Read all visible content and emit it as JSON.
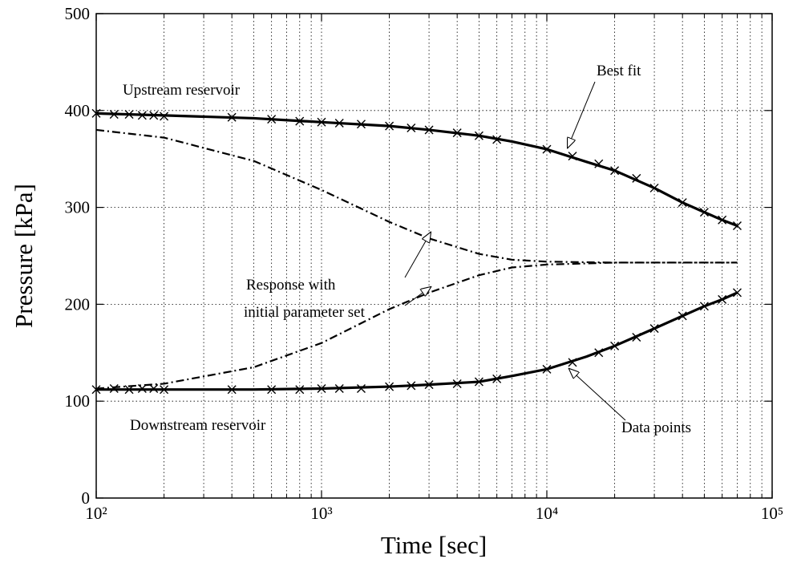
{
  "chart_data": {
    "type": "line",
    "x_label": "Time [sec]",
    "y_label": "Pressure [kPa]",
    "xlim": [
      100,
      100000
    ],
    "xlog": true,
    "xticks": [
      {
        "value": 100,
        "label": "10²"
      },
      {
        "value": 1000,
        "label": "10³"
      },
      {
        "value": 10000,
        "label": "10⁴"
      },
      {
        "value": 100000,
        "label": "10⁵"
      }
    ],
    "ylim": [
      0,
      500
    ],
    "yticks": [
      0,
      100,
      200,
      300,
      400,
      500
    ],
    "grid": true,
    "minor_grid": true,
    "annotations": [
      "Upstream reservoir",
      "Best fit",
      "Response with",
      "initial parameter set",
      "Downstream reservoir",
      "Data points"
    ],
    "series": [
      {
        "style": "solid",
        "color": "#000000",
        "x": [
          100,
          200,
          500,
          1000,
          2000,
          3000,
          5000,
          7000,
          10000,
          15000,
          20000,
          30000,
          40000,
          50000,
          60000,
          70000
        ],
        "values": [
          397,
          395,
          392,
          388,
          384,
          380,
          374,
          368,
          360,
          347,
          338,
          320,
          305,
          295,
          287,
          281
        ]
      },
      {
        "style": "solid",
        "color": "#000000",
        "x": [
          100,
          200,
          500,
          1000,
          2000,
          3000,
          5000,
          7000,
          10000,
          15000,
          20000,
          30000,
          40000,
          50000,
          60000,
          70000
        ],
        "values": [
          112,
          112,
          112,
          113,
          115,
          117,
          120,
          126,
          133,
          146,
          157,
          175,
          188,
          198,
          205,
          212
        ]
      },
      {
        "style": "markers",
        "color": "#000000",
        "x": [
          100,
          120,
          140,
          160,
          180,
          200,
          400,
          600,
          800,
          1000,
          1200,
          1500,
          2000,
          2500,
          3000,
          4000,
          5000,
          6000,
          10000,
          13000,
          17000,
          20000,
          25000,
          30000,
          40000,
          50000,
          60000,
          70000
        ],
        "values": [
          397,
          396,
          396,
          395,
          395,
          394,
          393,
          391,
          389,
          388,
          387,
          386,
          384,
          382,
          380,
          377,
          374,
          370,
          360,
          353,
          345,
          338,
          330,
          320,
          305,
          295,
          287,
          281
        ]
      },
      {
        "style": "markers",
        "color": "#000000",
        "x": [
          100,
          120,
          140,
          160,
          180,
          200,
          400,
          600,
          800,
          1000,
          1200,
          1500,
          2000,
          2500,
          3000,
          4000,
          5000,
          6000,
          10000,
          13000,
          17000,
          20000,
          25000,
          30000,
          40000,
          50000,
          60000,
          70000
        ],
        "values": [
          112,
          113,
          112,
          113,
          113,
          112,
          112,
          112,
          112,
          113,
          113,
          113,
          115,
          116,
          117,
          118,
          120,
          123,
          133,
          140,
          150,
          157,
          166,
          175,
          188,
          198,
          205,
          212
        ]
      },
      {
        "style": "dashdot",
        "color": "#000000",
        "x": [
          100,
          200,
          500,
          1000,
          2000,
          3000,
          5000,
          7000,
          10000,
          20000,
          70000
        ],
        "values": [
          380,
          372,
          348,
          318,
          285,
          268,
          252,
          246,
          244,
          243,
          243
        ]
      },
      {
        "style": "dashdot",
        "color": "#000000",
        "x": [
          100,
          200,
          500,
          1000,
          2000,
          3000,
          5000,
          7000,
          10000,
          20000,
          70000
        ],
        "values": [
          113,
          118,
          135,
          160,
          195,
          212,
          230,
          238,
          241,
          243,
          243
        ]
      }
    ]
  }
}
